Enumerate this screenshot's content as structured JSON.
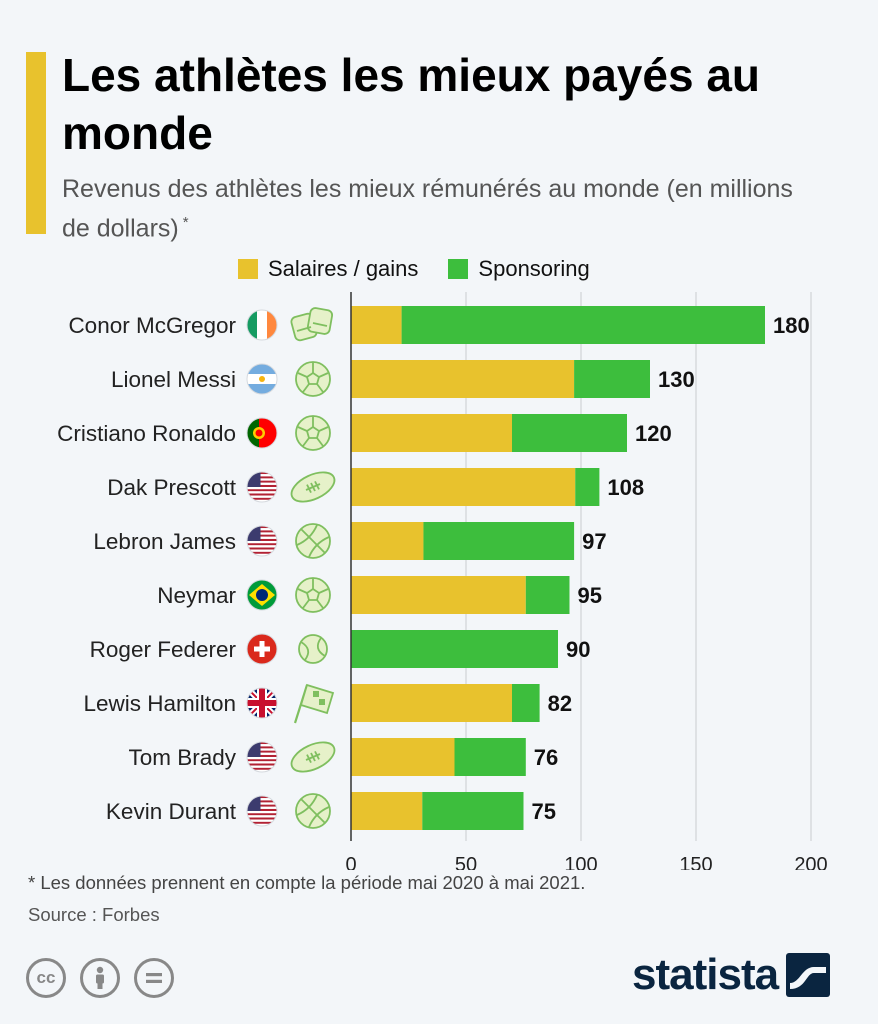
{
  "title": "Les athlètes les mieux payés au monde",
  "subtitle": "Revenus des athlètes les mieux rémunérés au monde (en millions de dollars)",
  "subtitle_mark": "*",
  "footnote": "* Les données prennent en compte la période mai 2020 à mai 2021.",
  "source": "Source : Forbes",
  "brand": "statista",
  "license_icons": [
    "cc-icon",
    "by-person-icon",
    "nd-equals-icon"
  ],
  "colors": {
    "salary": "#e8c22d",
    "sponsoring": "#3dbe3d",
    "accent": "#e8c22d",
    "brand": "#0a2540"
  },
  "chart_data": {
    "type": "bar",
    "orientation": "horizontal",
    "stacked": true,
    "categories": [
      "Conor McGregor",
      "Lionel Messi",
      "Cristiano Ronaldo",
      "Dak Prescott",
      "Lebron James",
      "Neymar",
      "Roger Federer",
      "Lewis Hamilton",
      "Tom Brady",
      "Kevin Durant"
    ],
    "flags": [
      "ireland",
      "argentina",
      "portugal",
      "usa",
      "usa",
      "brazil",
      "switzerland",
      "uk",
      "usa",
      "usa"
    ],
    "sports": [
      "mma-gloves-icon",
      "soccer-ball-icon",
      "soccer-ball-icon",
      "football-icon",
      "basketball-icon",
      "soccer-ball-icon",
      "tennis-ball-icon",
      "racing-flag-icon",
      "football-icon",
      "basketball-icon"
    ],
    "series": [
      {
        "name": "Salaires / gains",
        "values": [
          22,
          97,
          70,
          97.5,
          31.5,
          76,
          0,
          70,
          45,
          31
        ]
      },
      {
        "name": "Sponsoring",
        "values": [
          158,
          33,
          50,
          10.5,
          65.5,
          19,
          90,
          12,
          31,
          44
        ]
      }
    ],
    "totals": [
      180,
      130,
      120,
      108,
      97,
      95,
      90,
      82,
      76,
      75
    ],
    "xlim": [
      0,
      200
    ],
    "xticks": [
      0,
      50,
      100,
      150,
      200
    ],
    "grid": true,
    "legend": "top"
  }
}
